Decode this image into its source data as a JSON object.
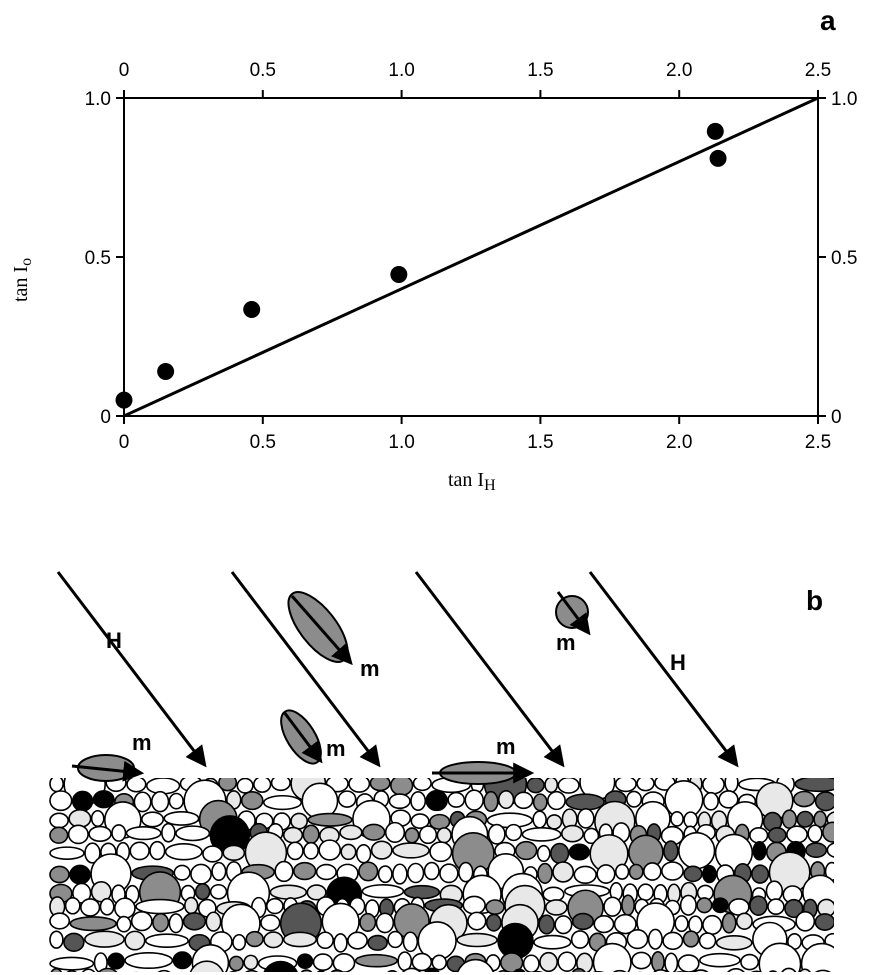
{
  "panel_a": {
    "label": "a",
    "chart_data": {
      "type": "scatter",
      "xlabel": "tan I",
      "xlabel_sub": "H",
      "ylabel": "tan I",
      "ylabel_sub": "o",
      "xlim": [
        0,
        2.5
      ],
      "ylim": [
        0,
        1.0
      ],
      "x_ticks": [
        "0",
        "0.5",
        "1.0",
        "1.5",
        "2.0",
        "2.5"
      ],
      "x_tick_values": [
        0,
        0.5,
        1.0,
        1.5,
        2.0,
        2.5
      ],
      "y_ticks": [
        "0",
        "0.5",
        "1.0"
      ],
      "y_tick_values": [
        0,
        0.5,
        1.0
      ],
      "ticks_mirrored": true,
      "grid": false,
      "points": [
        {
          "x": 0.0,
          "y": 0.05
        },
        {
          "x": 0.15,
          "y": 0.14
        },
        {
          "x": 0.46,
          "y": 0.335
        },
        {
          "x": 0.99,
          "y": 0.445
        },
        {
          "x": 2.13,
          "y": 0.895
        },
        {
          "x": 2.14,
          "y": 0.81
        }
      ],
      "line": {
        "x": [
          0,
          2.5
        ],
        "y": [
          0,
          1.0
        ]
      }
    }
  },
  "panel_b": {
    "label": "b",
    "field_label": "H",
    "moment_label": "m",
    "colors": {
      "grain_white": "#ffffff",
      "grain_light": "#e8e8e8",
      "grain_mid": "#8c8c8c",
      "grain_dark": "#555555",
      "grain_black": "#000000",
      "outline": "#000000"
    }
  }
}
